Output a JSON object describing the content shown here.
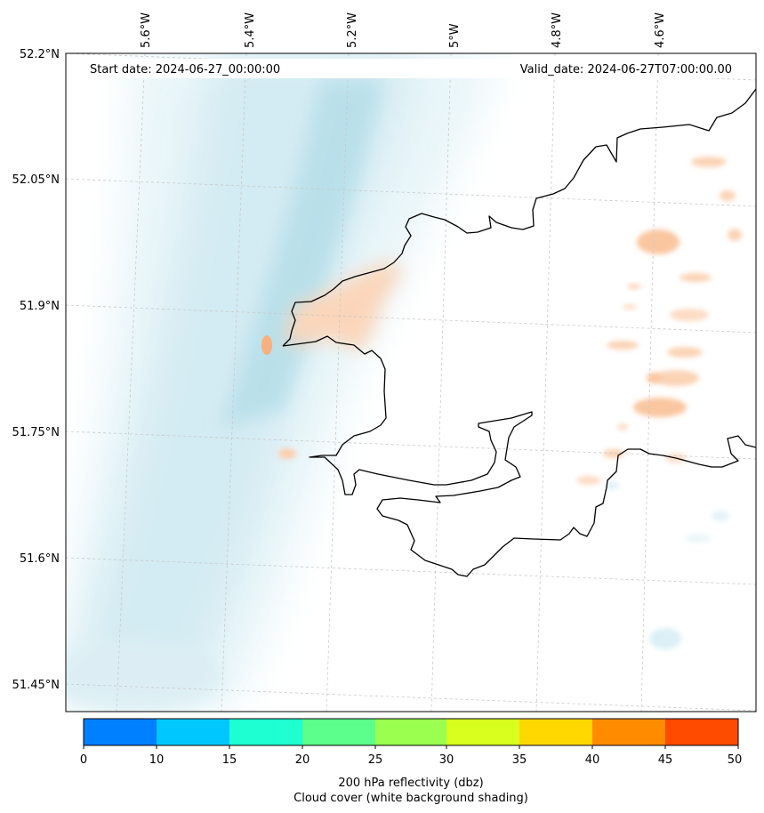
{
  "map": {
    "header": {
      "start_date": "Start date: 2024-06-27_00:00:00",
      "valid_date": "Valid_date: 2024-06-27T07:00:00.00"
    },
    "longitude_labels": [
      "5.6°W",
      "5.4°W",
      "5.2°W",
      "5°W",
      "4.8°W",
      "4.6°W"
    ],
    "latitude_labels": [
      "52.2°N",
      "52.05°N",
      "51.9°N",
      "51.75°N",
      "51.6°N",
      "51.45°N"
    ],
    "colorbar": {
      "ticks": [
        "0",
        "10",
        "15",
        "20",
        "25",
        "30",
        "35",
        "40",
        "45",
        "50"
      ],
      "colors": [
        "#0080ff",
        "#00c8ff",
        "#1effd2",
        "#5cff8c",
        "#9bff50",
        "#d8ff1e",
        "#ffd800",
        "#ff8c00",
        "#ff4b00"
      ],
      "label_line1": "200 hPa reflectivity (dbz)",
      "label_line2": "Cloud cover (white background shading)"
    },
    "colors": {
      "cloud": "#a8d8e4",
      "reflectivity_light": "#f9b88e",
      "coastline": "#000000",
      "grid": "#c8c8c8"
    }
  }
}
